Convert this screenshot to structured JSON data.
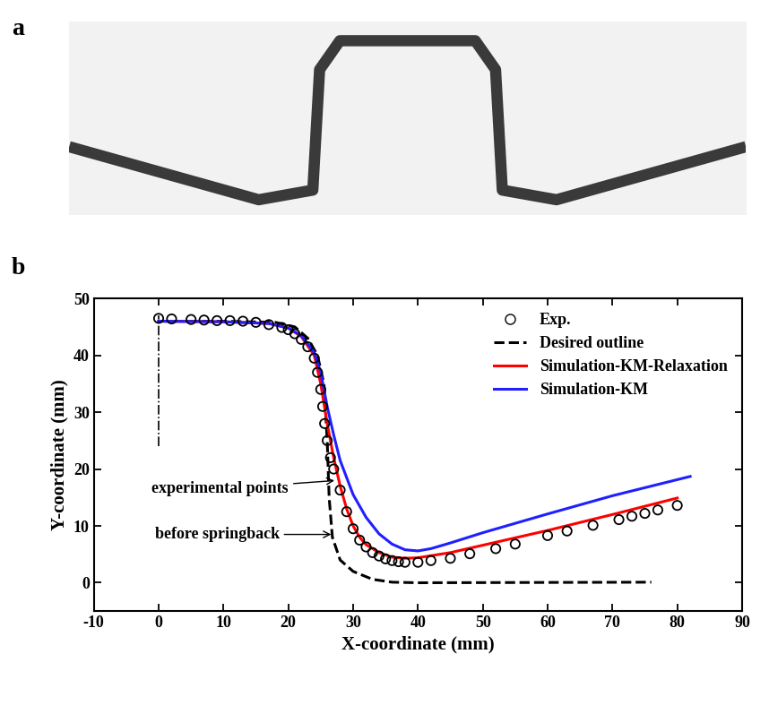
{
  "panel_labels": [
    "a",
    "b"
  ],
  "chart_data": {
    "type": "line",
    "x_label": "X-coordinate (mm)",
    "y_label": "Y-coordinate (mm)",
    "xlim": [
      -10,
      90
    ],
    "xticks": [
      -10,
      0,
      10,
      20,
      30,
      40,
      50,
      60,
      70,
      80,
      90
    ],
    "ylim": [
      -5,
      50
    ],
    "yticks": [
      0,
      10,
      20,
      30,
      40,
      50
    ],
    "legend": "upper right",
    "centerline": {
      "x": [
        0,
        0
      ],
      "y": [
        24,
        47
      ]
    },
    "series": [
      {
        "name": "Exp.",
        "type": "scatter",
        "color": "#000000",
        "marker": "open_circle",
        "x": [
          0,
          2,
          5,
          7,
          9,
          11,
          13,
          15,
          17,
          19,
          20,
          21,
          22,
          23,
          24,
          24.5,
          25,
          25.3,
          25.6,
          26,
          26.5,
          27,
          28,
          29,
          30,
          31,
          32,
          33,
          34,
          35,
          36,
          37,
          38,
          40,
          42,
          45,
          48,
          52,
          55,
          60,
          63,
          67,
          71,
          73,
          75,
          77,
          80
        ],
        "values": [
          46.5,
          46.4,
          46.3,
          46.2,
          46.1,
          46.1,
          46.0,
          45.8,
          45.4,
          44.9,
          44.5,
          43.8,
          42.8,
          41.5,
          39.5,
          37.0,
          34.0,
          31.0,
          28.0,
          25.0,
          22.0,
          20.0,
          16.3,
          12.5,
          9.5,
          7.5,
          6.3,
          5.3,
          4.7,
          4.2,
          3.9,
          3.7,
          3.6,
          3.6,
          3.9,
          4.3,
          5.1,
          6.0,
          6.8,
          8.3,
          9.1,
          10.1,
          11.1,
          11.7,
          12.2,
          12.8,
          13.6
        ]
      },
      {
        "name": "Desired outline",
        "type": "line",
        "color": "#000000",
        "line_style": "dashed",
        "x": [
          0,
          10,
          18,
          21,
          23,
          24.5,
          25.5,
          26,
          26.3,
          26.8,
          28,
          30,
          33,
          36,
          40,
          76
        ],
        "values": [
          46,
          46,
          45.8,
          45,
          43,
          40,
          35,
          25,
          15,
          8,
          4,
          2,
          0.6,
          0.1,
          0,
          0.1
        ]
      },
      {
        "name": "Simulation-KM-Relaxation",
        "type": "line",
        "color": "#ff0000",
        "line_style": "solid",
        "x": [
          0,
          10,
          17,
          20,
          22,
          24,
          25,
          26,
          27,
          28,
          29,
          30,
          31,
          32,
          34,
          36,
          38,
          40,
          45,
          50,
          60,
          70,
          80
        ],
        "values": [
          46,
          45.9,
          45.6,
          44.8,
          43.3,
          40,
          35,
          28,
          22,
          17,
          13,
          10,
          8,
          6.7,
          5.3,
          4.5,
          4.3,
          4.4,
          5.3,
          6.6,
          9.2,
          12,
          14.9
        ]
      },
      {
        "name": "Simulation-KM",
        "type": "line",
        "color": "#1f1fff",
        "line_style": "solid",
        "x": [
          0,
          10,
          17,
          20,
          22,
          24,
          25,
          26,
          27,
          28,
          30,
          32,
          34,
          36,
          38,
          40,
          42,
          45,
          50,
          60,
          70,
          82
        ],
        "values": [
          46,
          45.9,
          45.6,
          44.8,
          43.5,
          40.5,
          37,
          31,
          26,
          21.5,
          15.5,
          11.5,
          8.6,
          6.8,
          5.8,
          5.6,
          6,
          7,
          8.8,
          12.1,
          15.3,
          18.7
        ]
      }
    ],
    "annotations": [
      {
        "text": "experimental points",
        "x": 27.5,
        "y": 18
      },
      {
        "text": "before springback",
        "x": 27,
        "y": 8.5
      }
    ]
  }
}
